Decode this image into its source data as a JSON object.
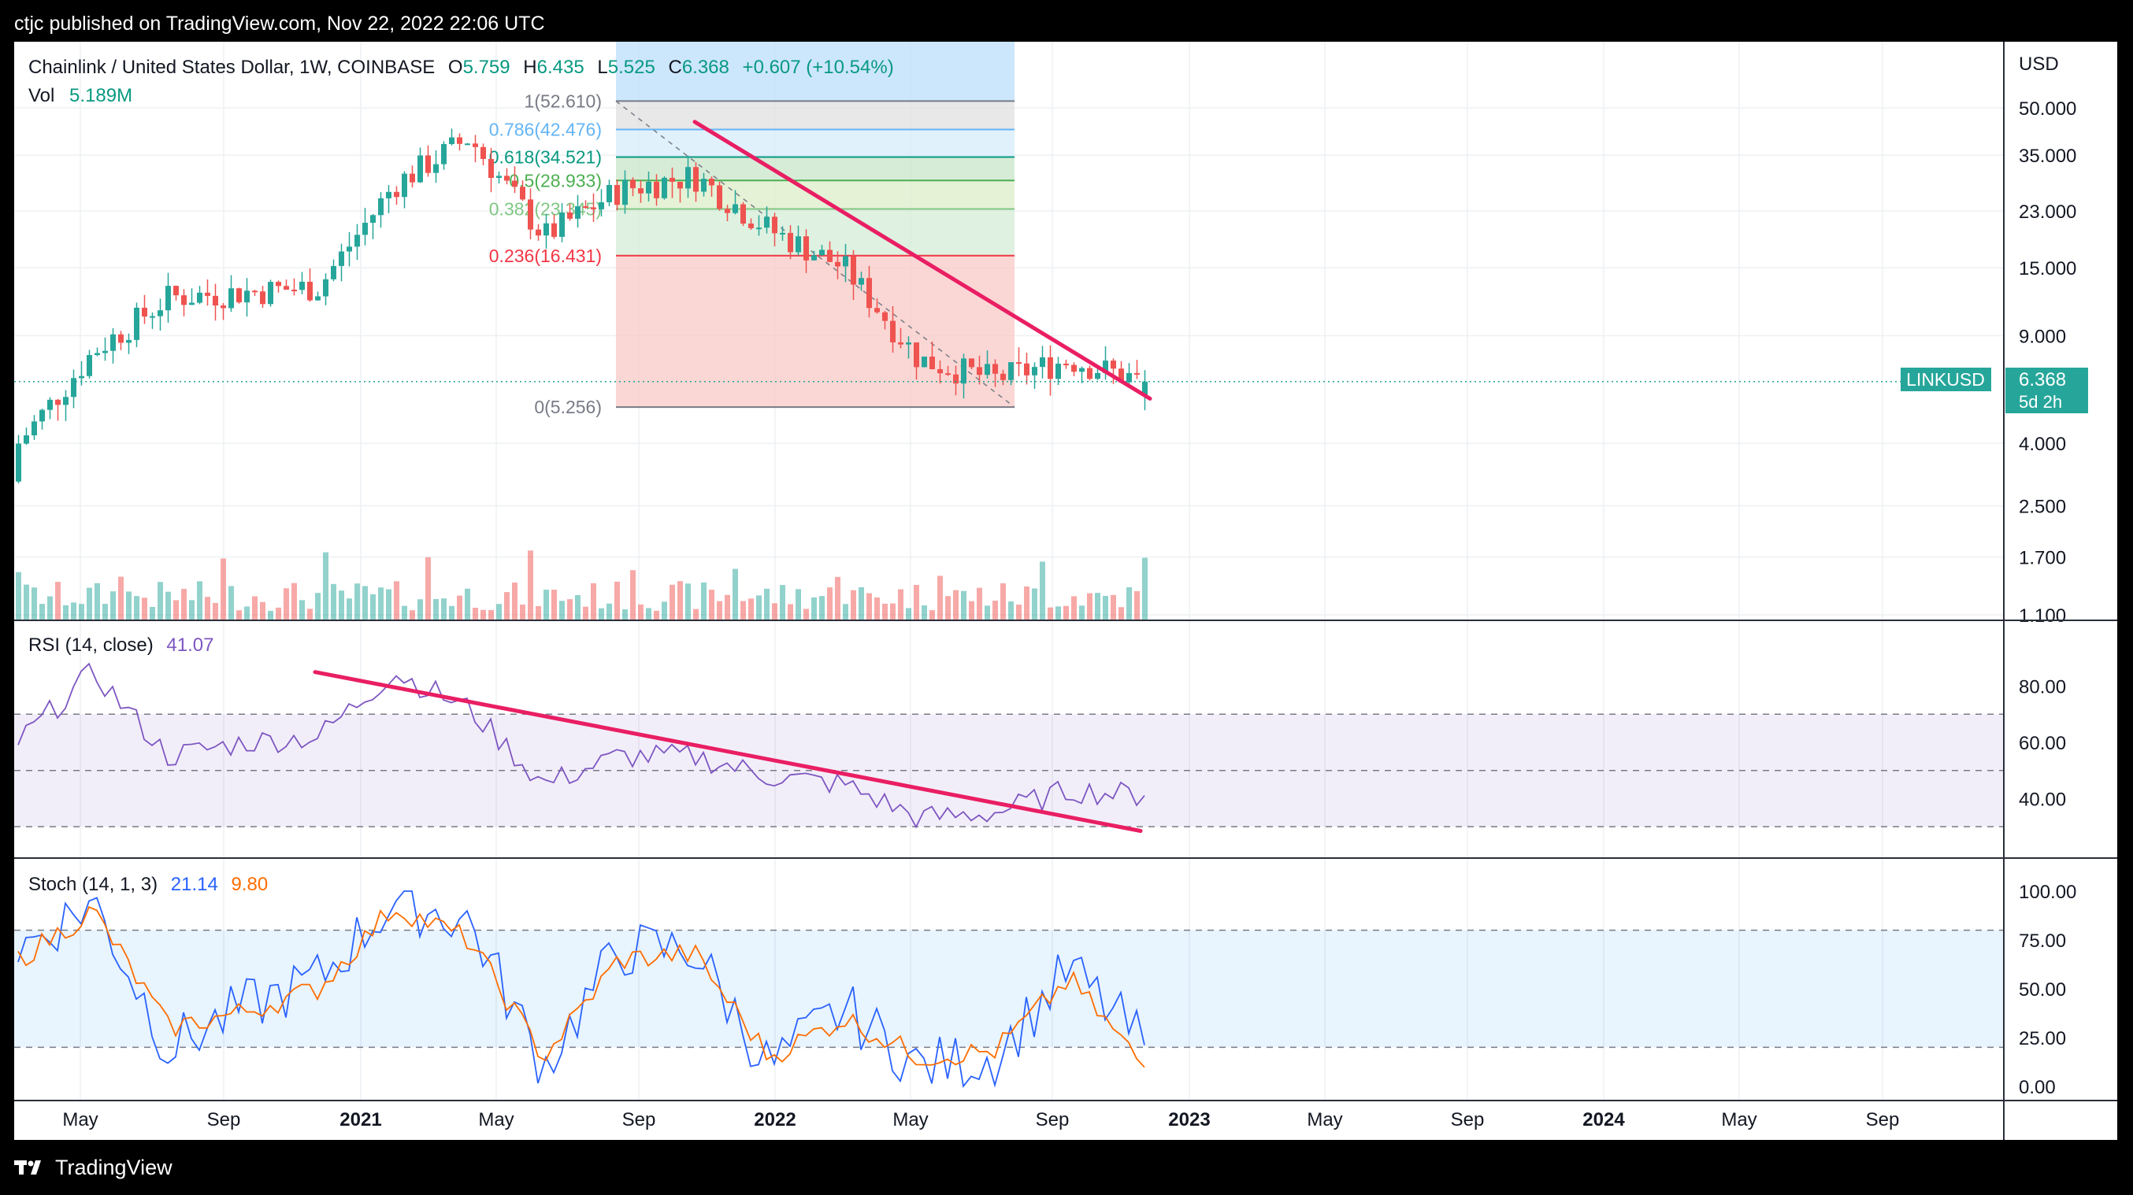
{
  "header": {
    "publish_text": "ctjc published on TradingView.com, Nov 22, 2022 22:06 UTC"
  },
  "footer": {
    "brand": "TradingView"
  },
  "legend": {
    "symbol": "Chainlink / United States Dollar, 1W, COINBASE",
    "o_label": "O",
    "o_value": "5.759",
    "h_label": "H",
    "h_value": "6.435",
    "l_label": "L",
    "l_value": "5.525",
    "c_label": "C",
    "c_value": "6.368",
    "change": "+0.607 (+10.54%)",
    "vol_label": "Vol",
    "vol_value": "5.189M"
  },
  "price_axis": {
    "currency": "USD",
    "ticks": [
      "50.000",
      "35.000",
      "23.000",
      "15.000",
      "9.000",
      "4.000",
      "2.500",
      "1.700",
      "1.100"
    ],
    "current_label": "LINKUSD",
    "current_price": "6.368",
    "countdown": "5d 2h"
  },
  "fib": {
    "levels": [
      {
        "label": "1(52.610)",
        "value": 52.61,
        "color": "#787b86"
      },
      {
        "label": "0.786(42.476)",
        "value": 42.476,
        "color": "#64b5f6"
      },
      {
        "label": "0.618(34.521)",
        "value": 34.521,
        "color": "#089981"
      },
      {
        "label": "0.5(28.933)",
        "value": 28.933,
        "color": "#4caf50"
      },
      {
        "label": "0.382(23.345)",
        "value": 23.345,
        "color": "#81c784"
      },
      {
        "label": "0.236(16.431)",
        "value": 16.431,
        "color": "#f23645"
      },
      {
        "label": "0(5.256)",
        "value": 5.256,
        "color": "#787b86"
      }
    ]
  },
  "rsi": {
    "title": "RSI (14, close)",
    "value": "41.07",
    "ticks": [
      "80.00",
      "60.00",
      "40.00"
    ]
  },
  "stoch": {
    "title": "Stoch (14, 1, 3)",
    "k_value": "21.14",
    "d_value": "9.80",
    "ticks": [
      "100.00",
      "75.00",
      "50.00",
      "25.00",
      "0.00"
    ]
  },
  "time_axis": [
    "May",
    "Sep",
    "2021",
    "May",
    "Sep",
    "2022",
    "May",
    "Sep",
    "2023",
    "May",
    "Sep",
    "2024",
    "May",
    "Sep"
  ],
  "colors": {
    "up": "#26a69a",
    "down": "#ef5350",
    "trend": "#e91e63",
    "rsi": "#7e57c2",
    "stoch_k": "#2962ff",
    "stoch_d": "#ff6d00"
  },
  "chart_data": {
    "type": "line",
    "title": "Chainlink / United States Dollar, 1W, COINBASE",
    "y_scale": "log",
    "ylim": [
      1.1,
      60
    ],
    "x": [
      "2020-05",
      "2020-07",
      "2020-09",
      "2020-11",
      "2021-01",
      "2021-03",
      "2021-05",
      "2021-07",
      "2021-09",
      "2021-11",
      "2022-01",
      "2022-03",
      "2022-05",
      "2022-07",
      "2022-09",
      "2022-11"
    ],
    "series": [
      {
        "values": [
          4.0,
          8.0,
          12.0,
          12.5,
          13.0,
          28.0,
          40.0,
          19.0,
          27.0,
          30.0,
          20.0,
          15.0,
          7.5,
          6.5,
          7.5,
          6.368
        ]
      }
    ],
    "rsi": [
      60,
      85,
      55,
      60,
      62,
      85,
      72,
      45,
      55,
      55,
      48,
      45,
      33,
      35,
      43,
      41.07
    ],
    "stoch_k": [
      70,
      95,
      20,
      40,
      55,
      95,
      85,
      10,
      70,
      70,
      10,
      40,
      10,
      15,
      60,
      21.14
    ],
    "stoch_d": [
      65,
      90,
      30,
      38,
      50,
      92,
      75,
      15,
      65,
      68,
      15,
      35,
      15,
      18,
      55,
      9.8
    ]
  }
}
